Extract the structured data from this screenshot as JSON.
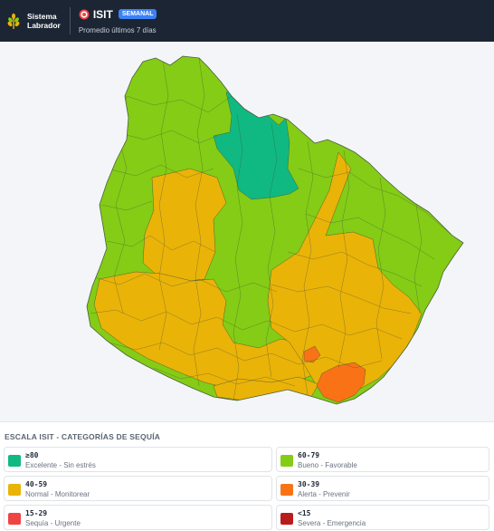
{
  "header": {
    "brand_line1": "Sistema",
    "brand_line2": "Labrador",
    "title": "ISIT",
    "badge": "SEMANAL",
    "subtitle": "Promedio últimos 7 días"
  },
  "legend": {
    "title": "ESCALA ISIT - CATEGORÍAS DE SEQUÍA",
    "items": [
      {
        "range": "≥80",
        "label": "Excelente - Sin estrés",
        "color": "#10b981"
      },
      {
        "range": "60-79",
        "label": "Bueno - Favorable",
        "color": "#84cc16"
      },
      {
        "range": "40-59",
        "label": "Normal - Monitorear",
        "color": "#eab308"
      },
      {
        "range": "30-39",
        "label": "Alerta - Prevenir",
        "color": "#f97316"
      },
      {
        "range": "15-29",
        "label": "Sequía - Urgente",
        "color": "#ef4444"
      },
      {
        "range": "<15",
        "label": "Severa - Emergencia",
        "color": "#b91c1c"
      }
    ]
  },
  "map": {
    "region_colors": {
      "excelente": "#10b981",
      "bueno": "#84cc16",
      "normal": "#eab308",
      "alerta": "#f97316",
      "sequia": "#ef4444"
    }
  }
}
